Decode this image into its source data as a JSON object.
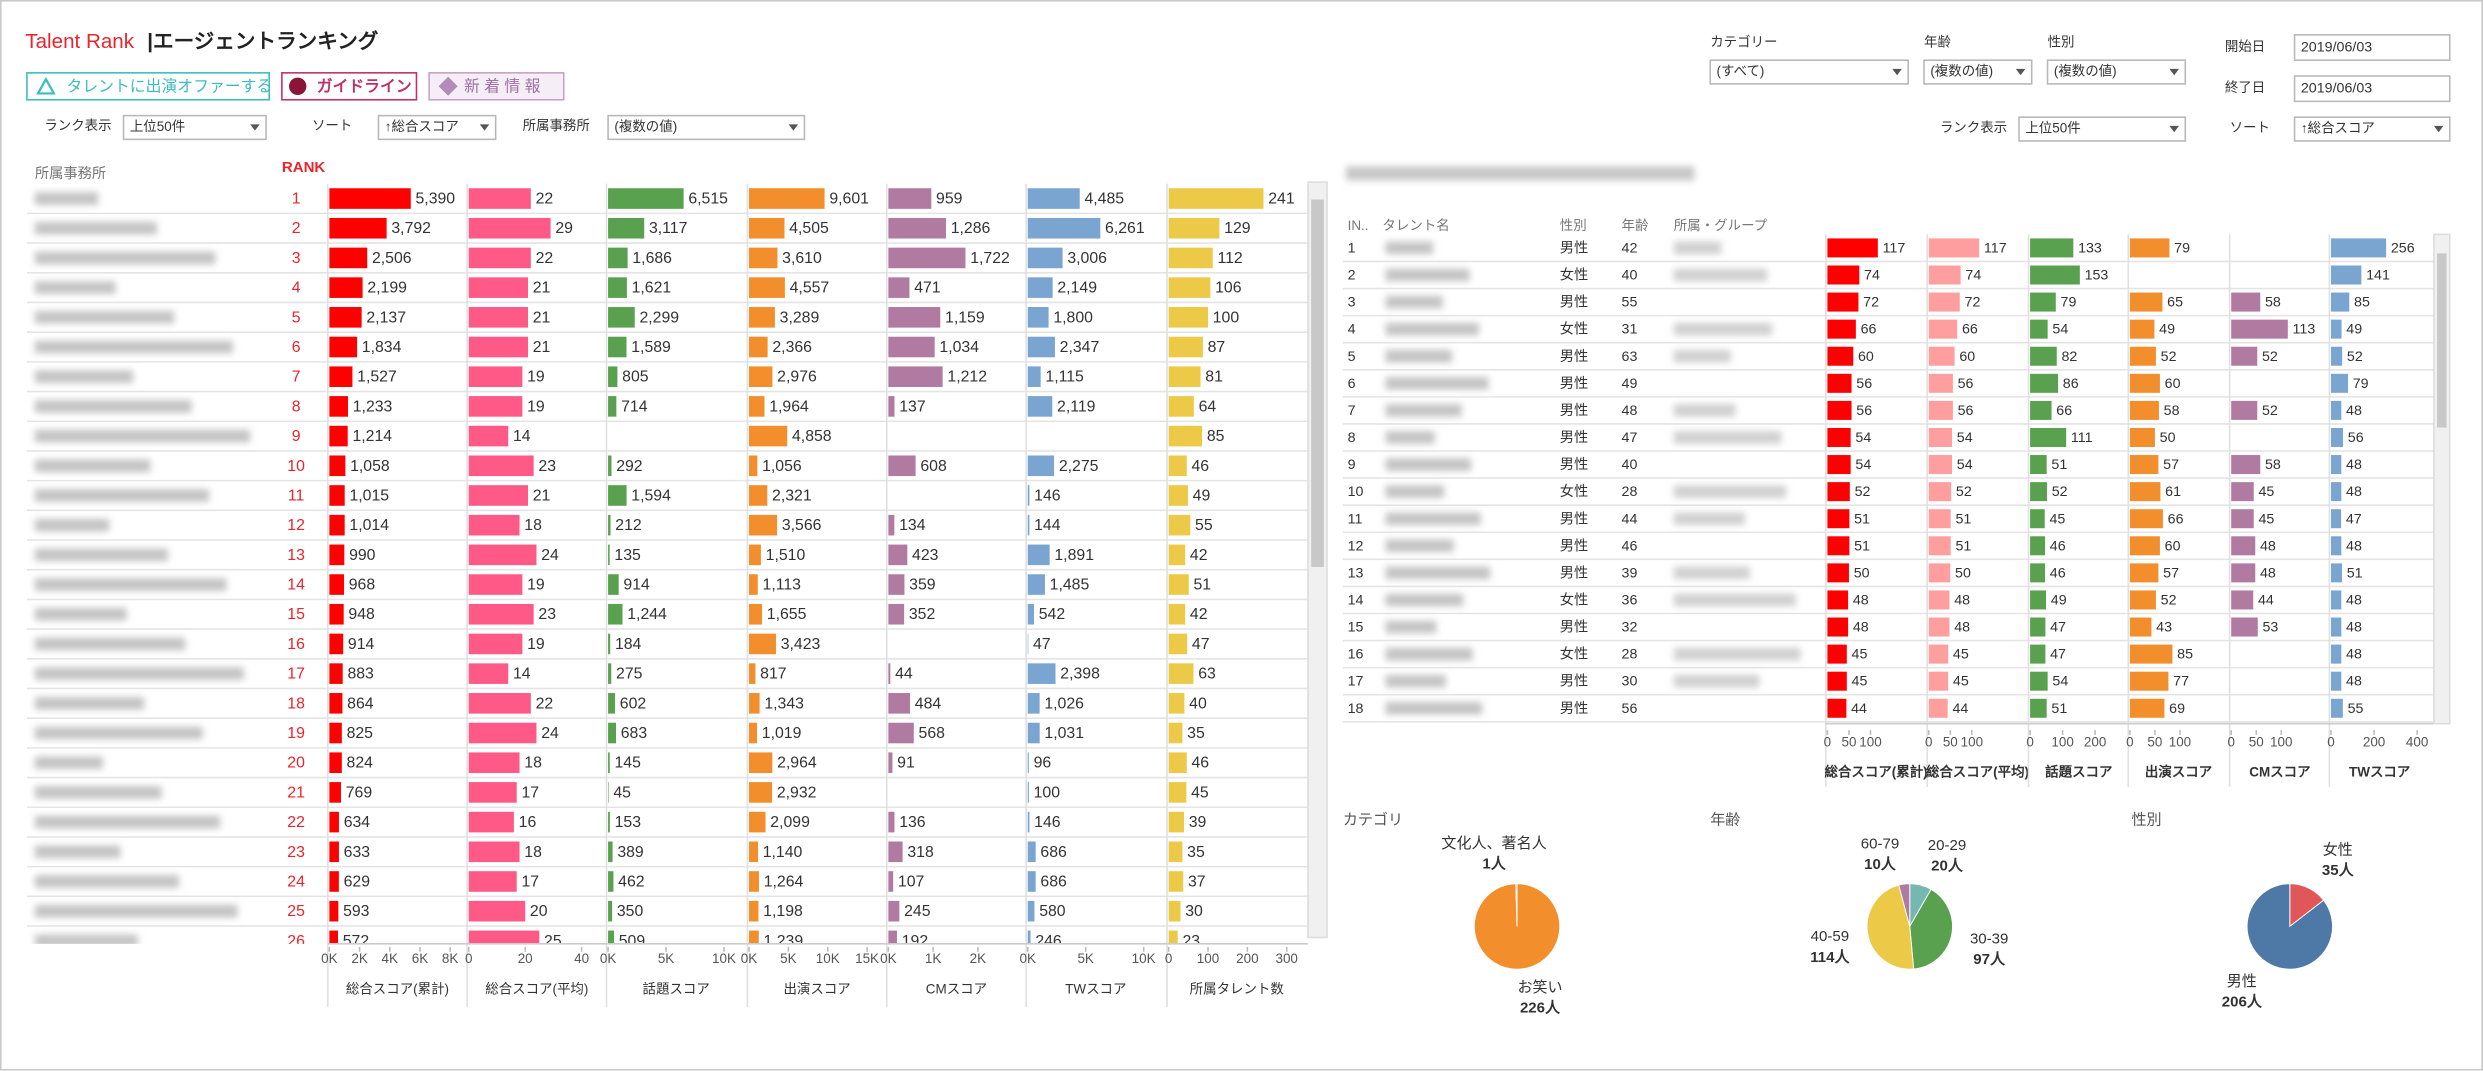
{
  "header": {
    "brand": "Talent Rank",
    "title": "|エージェントランキング",
    "buttons": [
      "タレントに出演オファーする",
      "ガイドライン",
      "新 着 情 報"
    ]
  },
  "filters_left": [
    {
      "label": "ランク表示",
      "value": "上位50件"
    },
    {
      "label": "ソート",
      "value": "↑総合スコア"
    },
    {
      "label": "所属事務所",
      "value": "(複数の値)"
    }
  ],
  "filters_top": [
    {
      "label": "カテゴリー",
      "value": "(すべて)"
    },
    {
      "label": "年齢",
      "value": "(複数の値)"
    },
    {
      "label": "性別",
      "value": "(複数の値)"
    }
  ],
  "dates": [
    {
      "label": "開始日",
      "value": "2019/06/03"
    },
    {
      "label": "終了日",
      "value": "2019/06/03"
    }
  ],
  "filters_right": [
    {
      "label": "ランク表示",
      "value": "上位50件"
    },
    {
      "label": "ソート",
      "value": "↑総合スコア"
    }
  ],
  "left_table": {
    "group_header": "所属事務所",
    "rank_header": "RANK",
    "ranks": [
      1,
      2,
      3,
      4,
      5,
      6,
      7,
      8,
      9,
      10,
      11,
      12,
      13,
      14,
      15,
      16,
      17,
      18,
      19,
      20,
      21,
      22,
      23,
      24,
      25,
      26
    ],
    "columns": [
      {
        "name": "総合スコア(累計)",
        "color": "#ff0000",
        "xlim": [
          0,
          8600
        ],
        "xticks": [
          {
            "value": 0,
            "label": "0K"
          },
          {
            "value": 2000,
            "label": "2K"
          },
          {
            "value": 4000,
            "label": "4K"
          },
          {
            "value": 6000,
            "label": "6K"
          },
          {
            "value": 8000,
            "label": "8K"
          }
        ],
        "values": [
          5390,
          3792,
          2506,
          2199,
          2137,
          1834,
          1527,
          1233,
          1214,
          1058,
          1015,
          1014,
          990,
          968,
          948,
          914,
          883,
          864,
          825,
          824,
          769,
          634,
          633,
          629,
          593,
          572
        ],
        "value_labels": [
          "5,390",
          "3,792",
          "2,506",
          "2,199",
          "2,137",
          "1,834",
          "1,527",
          "1,233",
          "1,214",
          "1,058",
          "1,015",
          "1,014",
          "990",
          "968",
          "948",
          "914",
          "883",
          "864",
          "825",
          "824",
          "769",
          "634",
          "633",
          "629",
          "593",
          "572"
        ]
      },
      {
        "name": "総合スコア(平均)",
        "color": "#ff5a87",
        "xlim": [
          0,
          46
        ],
        "xticks": [
          0,
          20,
          40
        ],
        "values": [
          22,
          29,
          22,
          21,
          21,
          21,
          19,
          19,
          14,
          23,
          21,
          18,
          24,
          19,
          23,
          19,
          14,
          22,
          24,
          18,
          17,
          16,
          18,
          17,
          20,
          25
        ]
      },
      {
        "name": "話題スコア",
        "color": "#59a14f",
        "xlim": [
          0,
          11200
        ],
        "xticks": [
          {
            "value": 0,
            "label": "0K"
          },
          {
            "value": 5000,
            "label": "5K"
          },
          {
            "value": 10000,
            "label": "10K"
          }
        ],
        "values": [
          6515,
          3117,
          1686,
          1621,
          2299,
          1589,
          805,
          714,
          null,
          292,
          1594,
          212,
          135,
          914,
          1244,
          184,
          275,
          602,
          683,
          145,
          45,
          153,
          389,
          462,
          350,
          509
        ],
        "value_labels": [
          "6,515",
          "3,117",
          "1,686",
          "1,621",
          "2,299",
          "1,589",
          "805",
          "714",
          null,
          "292",
          "1,594",
          "212",
          "135",
          "914",
          "1,244",
          "184",
          "275",
          "602",
          "683",
          "145",
          "45",
          "153",
          "389",
          "462",
          "350",
          "509"
        ]
      },
      {
        "name": "出演スコア",
        "color": "#f28e2b",
        "xlim": [
          0,
          16500
        ],
        "xticks": [
          {
            "value": 0,
            "label": "0K"
          },
          {
            "value": 5000,
            "label": "5K"
          },
          {
            "value": 10000,
            "label": "10K"
          },
          {
            "value": 15000,
            "label": "15K"
          }
        ],
        "values": [
          9601,
          4505,
          3610,
          4557,
          3289,
          2366,
          2976,
          1964,
          4858,
          1056,
          2321,
          3566,
          1510,
          1113,
          1655,
          3423,
          817,
          1343,
          1019,
          2964,
          2932,
          2099,
          1140,
          1264,
          1198,
          1239
        ],
        "value_labels": [
          "9,601",
          "4,505",
          "3,610",
          "4,557",
          "3,289",
          "2,366",
          "2,976",
          "1,964",
          "4,858",
          "1,056",
          "2,321",
          "3,566",
          "1,510",
          "1,113",
          "1,655",
          "3,423",
          "817",
          "1,343",
          "1,019",
          "2,964",
          "2,932",
          "2,099",
          "1,140",
          "1,264",
          "1,198",
          "1,239"
        ]
      },
      {
        "name": "CMスコア",
        "color": "#b07aa1",
        "xlim": [
          0,
          2900
        ],
        "xticks": [
          {
            "value": 0,
            "label": "0K"
          },
          {
            "value": 1000,
            "label": "1K"
          },
          {
            "value": 2000,
            "label": "2K"
          }
        ],
        "values": [
          959,
          1286,
          1722,
          471,
          1159,
          1034,
          1212,
          137,
          null,
          608,
          null,
          134,
          423,
          359,
          352,
          null,
          44,
          484,
          568,
          91,
          null,
          136,
          318,
          107,
          245,
          192
        ],
        "value_labels": [
          "959",
          "1,286",
          "1,722",
          "471",
          "1,159",
          "1,034",
          "1,212",
          "137",
          null,
          "608",
          null,
          "134",
          "423",
          "359",
          "352",
          null,
          "44",
          "484",
          "568",
          "91",
          null,
          "136",
          "318",
          "107",
          "245",
          "192"
        ]
      },
      {
        "name": "TWスコア",
        "color": "#79a5d0",
        "xlim": [
          0,
          11200
        ],
        "xticks": [
          {
            "value": 0,
            "label": "0K"
          },
          {
            "value": 5000,
            "label": "5K"
          },
          {
            "value": 10000,
            "label": "10K"
          }
        ],
        "values": [
          4485,
          6261,
          3006,
          2149,
          1800,
          2347,
          1115,
          2119,
          null,
          2275,
          146,
          144,
          1891,
          1485,
          542,
          47,
          2398,
          1026,
          1031,
          96,
          100,
          146,
          686,
          686,
          580,
          246
        ],
        "value_labels": [
          "4,485",
          "6,261",
          "3,006",
          "2,149",
          "1,800",
          "2,347",
          "1,115",
          "2,119",
          null,
          "2,275",
          "146",
          "144",
          "1,891",
          "1,485",
          "542",
          "47",
          "2,398",
          "1,026",
          "1,031",
          "96",
          "100",
          "146",
          "686",
          "686",
          "580",
          "246"
        ]
      },
      {
        "name": "所属タレント数",
        "color": "#edc948",
        "xlim": [
          0,
          330
        ],
        "xticks": [
          0,
          100,
          200,
          300
        ],
        "values": [
          241,
          129,
          112,
          106,
          100,
          87,
          81,
          64,
          85,
          46,
          49,
          55,
          42,
          51,
          42,
          47,
          63,
          40,
          35,
          46,
          45,
          39,
          35,
          37,
          30,
          23
        ]
      }
    ]
  },
  "right_table": {
    "headers": [
      "IN..",
      "タレント名",
      "性別",
      "年齢",
      "所属・グループ"
    ],
    "index": [
      1,
      2,
      3,
      4,
      5,
      6,
      7,
      8,
      9,
      10,
      11,
      12,
      13,
      14,
      15,
      16,
      17,
      18
    ],
    "gender": [
      "男性",
      "女性",
      "男性",
      "女性",
      "男性",
      "男性",
      "男性",
      "男性",
      "男性",
      "女性",
      "男性",
      "男性",
      "男性",
      "女性",
      "男性",
      "女性",
      "男性",
      "男性"
    ],
    "age": [
      42,
      40,
      55,
      31,
      63,
      49,
      48,
      47,
      40,
      28,
      44,
      46,
      39,
      36,
      32,
      28,
      30,
      56
    ],
    "columns": [
      {
        "name": "総合スコア(累計)",
        "color": "#ff0000",
        "xlim": [
          0,
          215
        ],
        "xticks": [
          0,
          50,
          100
        ],
        "values": [
          117,
          74,
          72,
          66,
          60,
          56,
          56,
          54,
          54,
          52,
          51,
          51,
          50,
          48,
          48,
          45,
          45,
          44
        ]
      },
      {
        "name": "総合スコア(平均)",
        "color": "#ff9e9e",
        "xlim": [
          0,
          215
        ],
        "xticks": [
          0,
          50,
          100
        ],
        "values": [
          117,
          74,
          72,
          66,
          60,
          56,
          56,
          54,
          54,
          52,
          51,
          51,
          50,
          48,
          48,
          45,
          45,
          44
        ]
      },
      {
        "name": "話題スコア",
        "color": "#59a14f",
        "xlim": [
          0,
          285
        ],
        "xticks": [
          0,
          100,
          200
        ],
        "values": [
          133,
          153,
          79,
          54,
          82,
          86,
          66,
          111,
          51,
          52,
          45,
          46,
          46,
          49,
          47,
          47,
          54,
          51
        ]
      },
      {
        "name": "出演スコア",
        "color": "#f28e2b",
        "xlim": [
          0,
          185
        ],
        "xticks": [
          0,
          50,
          100
        ],
        "values": [
          79,
          null,
          65,
          49,
          52,
          60,
          58,
          50,
          57,
          61,
          66,
          60,
          57,
          52,
          43,
          85,
          77,
          69
        ]
      },
      {
        "name": "CMスコア",
        "color": "#b07aa1",
        "xlim": [
          0,
          185
        ],
        "xticks": [
          0,
          50,
          100
        ],
        "values": [
          null,
          null,
          58,
          113,
          52,
          null,
          52,
          null,
          58,
          45,
          45,
          48,
          48,
          44,
          53,
          null,
          null,
          null
        ]
      },
      {
        "name": "TWスコア",
        "color": "#79a5d0",
        "xlim": [
          0,
          430
        ],
        "xticks": [
          0,
          200,
          400
        ],
        "values": [
          256,
          141,
          85,
          49,
          52,
          79,
          48,
          56,
          48,
          48,
          47,
          48,
          51,
          48,
          48,
          48,
          48,
          55
        ]
      }
    ]
  },
  "pies": [
    {
      "type": "pie",
      "title": "カテゴリ",
      "categories": [
        "お笑い",
        "文化人、著名人"
      ],
      "values": [
        226,
        1
      ],
      "value_labels": [
        "226人",
        "1人"
      ],
      "colors": [
        "#f28e2b",
        "#e15759"
      ]
    },
    {
      "type": "pie",
      "title": "年齢",
      "categories": [
        "20-29",
        "30-39",
        "40-59",
        "60-79"
      ],
      "values": [
        20,
        97,
        114,
        10
      ],
      "value_labels": [
        "20人",
        "97人",
        "114人",
        "10人"
      ],
      "colors": [
        "#76b7b2",
        "#59a14f",
        "#edc948",
        "#b07aa1"
      ]
    },
    {
      "type": "pie",
      "title": "性別",
      "categories": [
        "女性",
        "男性"
      ],
      "values": [
        35,
        206
      ],
      "value_labels": [
        "35人",
        "206人"
      ],
      "colors": [
        "#e15759",
        "#4e79a7"
      ]
    }
  ]
}
